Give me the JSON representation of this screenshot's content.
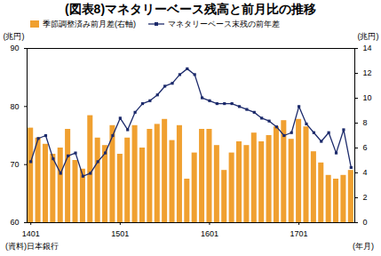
{
  "chart_data": {
    "type": "bar",
    "title": "(図表8)マネタリーベース残高と前月比の推移",
    "categories": [
      "1401",
      null,
      null,
      null,
      null,
      null,
      null,
      null,
      null,
      null,
      null,
      null,
      "1501",
      null,
      null,
      null,
      null,
      null,
      null,
      null,
      null,
      null,
      null,
      null,
      "1601",
      null,
      null,
      null,
      null,
      null,
      null,
      null,
      null,
      null,
      null,
      null,
      "1701",
      null,
      null,
      null,
      null,
      null,
      null,
      null
    ],
    "series": [
      {
        "name": "季節調整済み前月差(右軸)",
        "type": "bar",
        "axis": "y2",
        "color": "#f0a030",
        "values": [
          7.6,
          6.8,
          6.3,
          5.5,
          6.0,
          7.5,
          5.0,
          4.3,
          8.6,
          6.8,
          6.2,
          7.8,
          5.5,
          6.8,
          7.8,
          6.0,
          7.5,
          7.9,
          8.3,
          6.6,
          7.8,
          3.5,
          5.6,
          7.5,
          7.5,
          6.2,
          4.2,
          5.6,
          6.5,
          6.2,
          7.2,
          6.5,
          7.0,
          7.7,
          8.2,
          6.7,
          8.3,
          7.7,
          5.7,
          4.8,
          3.8,
          3.5,
          3.8,
          4.2
        ]
      },
      {
        "name": "マネタリーベース末残の前年差",
        "type": "line",
        "marker": "square",
        "color": "#1c2a6b",
        "values": [
          70.5,
          74.5,
          75.0,
          71.0,
          68.5,
          71.5,
          72.0,
          68.0,
          68.5,
          70.5,
          72.0,
          75.0,
          78.0,
          76.0,
          79.0,
          80.5,
          81.0,
          82.0,
          83.5,
          84.0,
          85.5,
          86.5,
          85.5,
          81.5,
          81.0,
          80.5,
          80.5,
          80.5,
          80.0,
          79.5,
          79.0,
          78.0,
          77.5,
          76.5,
          75.0,
          75.5,
          80.0,
          77.0,
          75.5,
          74.0,
          75.5,
          72.0,
          76.0,
          69.5
        ]
      }
    ],
    "ylim": [
      60,
      90
    ],
    "yticks": [
      60,
      70,
      80,
      90
    ],
    "ylabel": "(兆円)",
    "y2lim": [
      0,
      14
    ],
    "y2ticks": [
      0,
      2,
      4,
      6,
      8,
      10,
      12,
      14
    ],
    "y2label": "(兆円)",
    "xlabel": "(年月)",
    "source": "(資料)日本銀行",
    "legend": "top-left"
  }
}
